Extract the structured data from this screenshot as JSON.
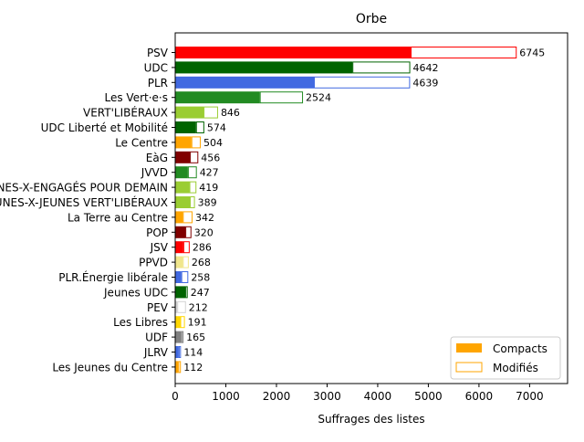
{
  "chart_data": {
    "type": "bar",
    "orientation": "horizontal",
    "stacked": true,
    "title": "Orbe",
    "xlabel": "Suffrages des listes",
    "ylabel": "",
    "xlim": [
      0,
      7750
    ],
    "xticks": [
      0,
      1000,
      2000,
      3000,
      4000,
      5000,
      6000,
      7000
    ],
    "grid": false,
    "legend_position": "lower-right",
    "legend": [
      {
        "label": "Compacts",
        "style": "filled",
        "color": "#ffa500"
      },
      {
        "label": "Modifiés",
        "style": "outline",
        "color": "#ffa500"
      }
    ],
    "categories": [
      "PSV",
      "UDC",
      "PLR",
      "Les Vert·e·s",
      "VERT'LIBÉRAUX",
      "UDC Liberté et Mobilité",
      "Le Centre",
      "EàG",
      "JVVD",
      "JEUNES-X-ENGAGÉS POUR DEMAIN",
      "JEUNES-X-JEUNES VERT'LIBÉRAUX",
      "La Terre au Centre",
      "POP",
      "JSV",
      "PPVD",
      "PLR.Énergie libérale",
      "Jeunes UDC",
      "PEV",
      "Les Libres",
      "UDF",
      "JLRV",
      "Les Jeunes du Centre"
    ],
    "series": [
      {
        "name": "Compacts",
        "values": [
          4650,
          3500,
          2740,
          1670,
          560,
          410,
          320,
          290,
          250,
          280,
          290,
          150,
          200,
          160,
          150,
          120,
          200,
          40,
          100,
          120,
          70,
          60
        ]
      },
      {
        "name": "Modifiés",
        "values": [
          2095,
          1142,
          1899,
          854,
          286,
          164,
          184,
          166,
          177,
          139,
          99,
          192,
          120,
          126,
          118,
          138,
          47,
          172,
          91,
          45,
          44,
          52
        ]
      }
    ],
    "totals": [
      6745,
      4642,
      4639,
      2524,
      846,
      574,
      504,
      456,
      427,
      419,
      389,
      342,
      320,
      286,
      268,
      258,
      247,
      212,
      191,
      165,
      114,
      112
    ],
    "colors": [
      "#ff0000",
      "#006400",
      "#4169e1",
      "#228b22",
      "#9acd32",
      "#006400",
      "#ffa500",
      "#800000",
      "#228b22",
      "#9acd32",
      "#9acd32",
      "#ffa500",
      "#800000",
      "#ff0000",
      "#f0e68c",
      "#4169e1",
      "#006400",
      "#d3d3d3",
      "#ffd700",
      "#808080",
      "#4169e1",
      "#ffa500"
    ]
  }
}
